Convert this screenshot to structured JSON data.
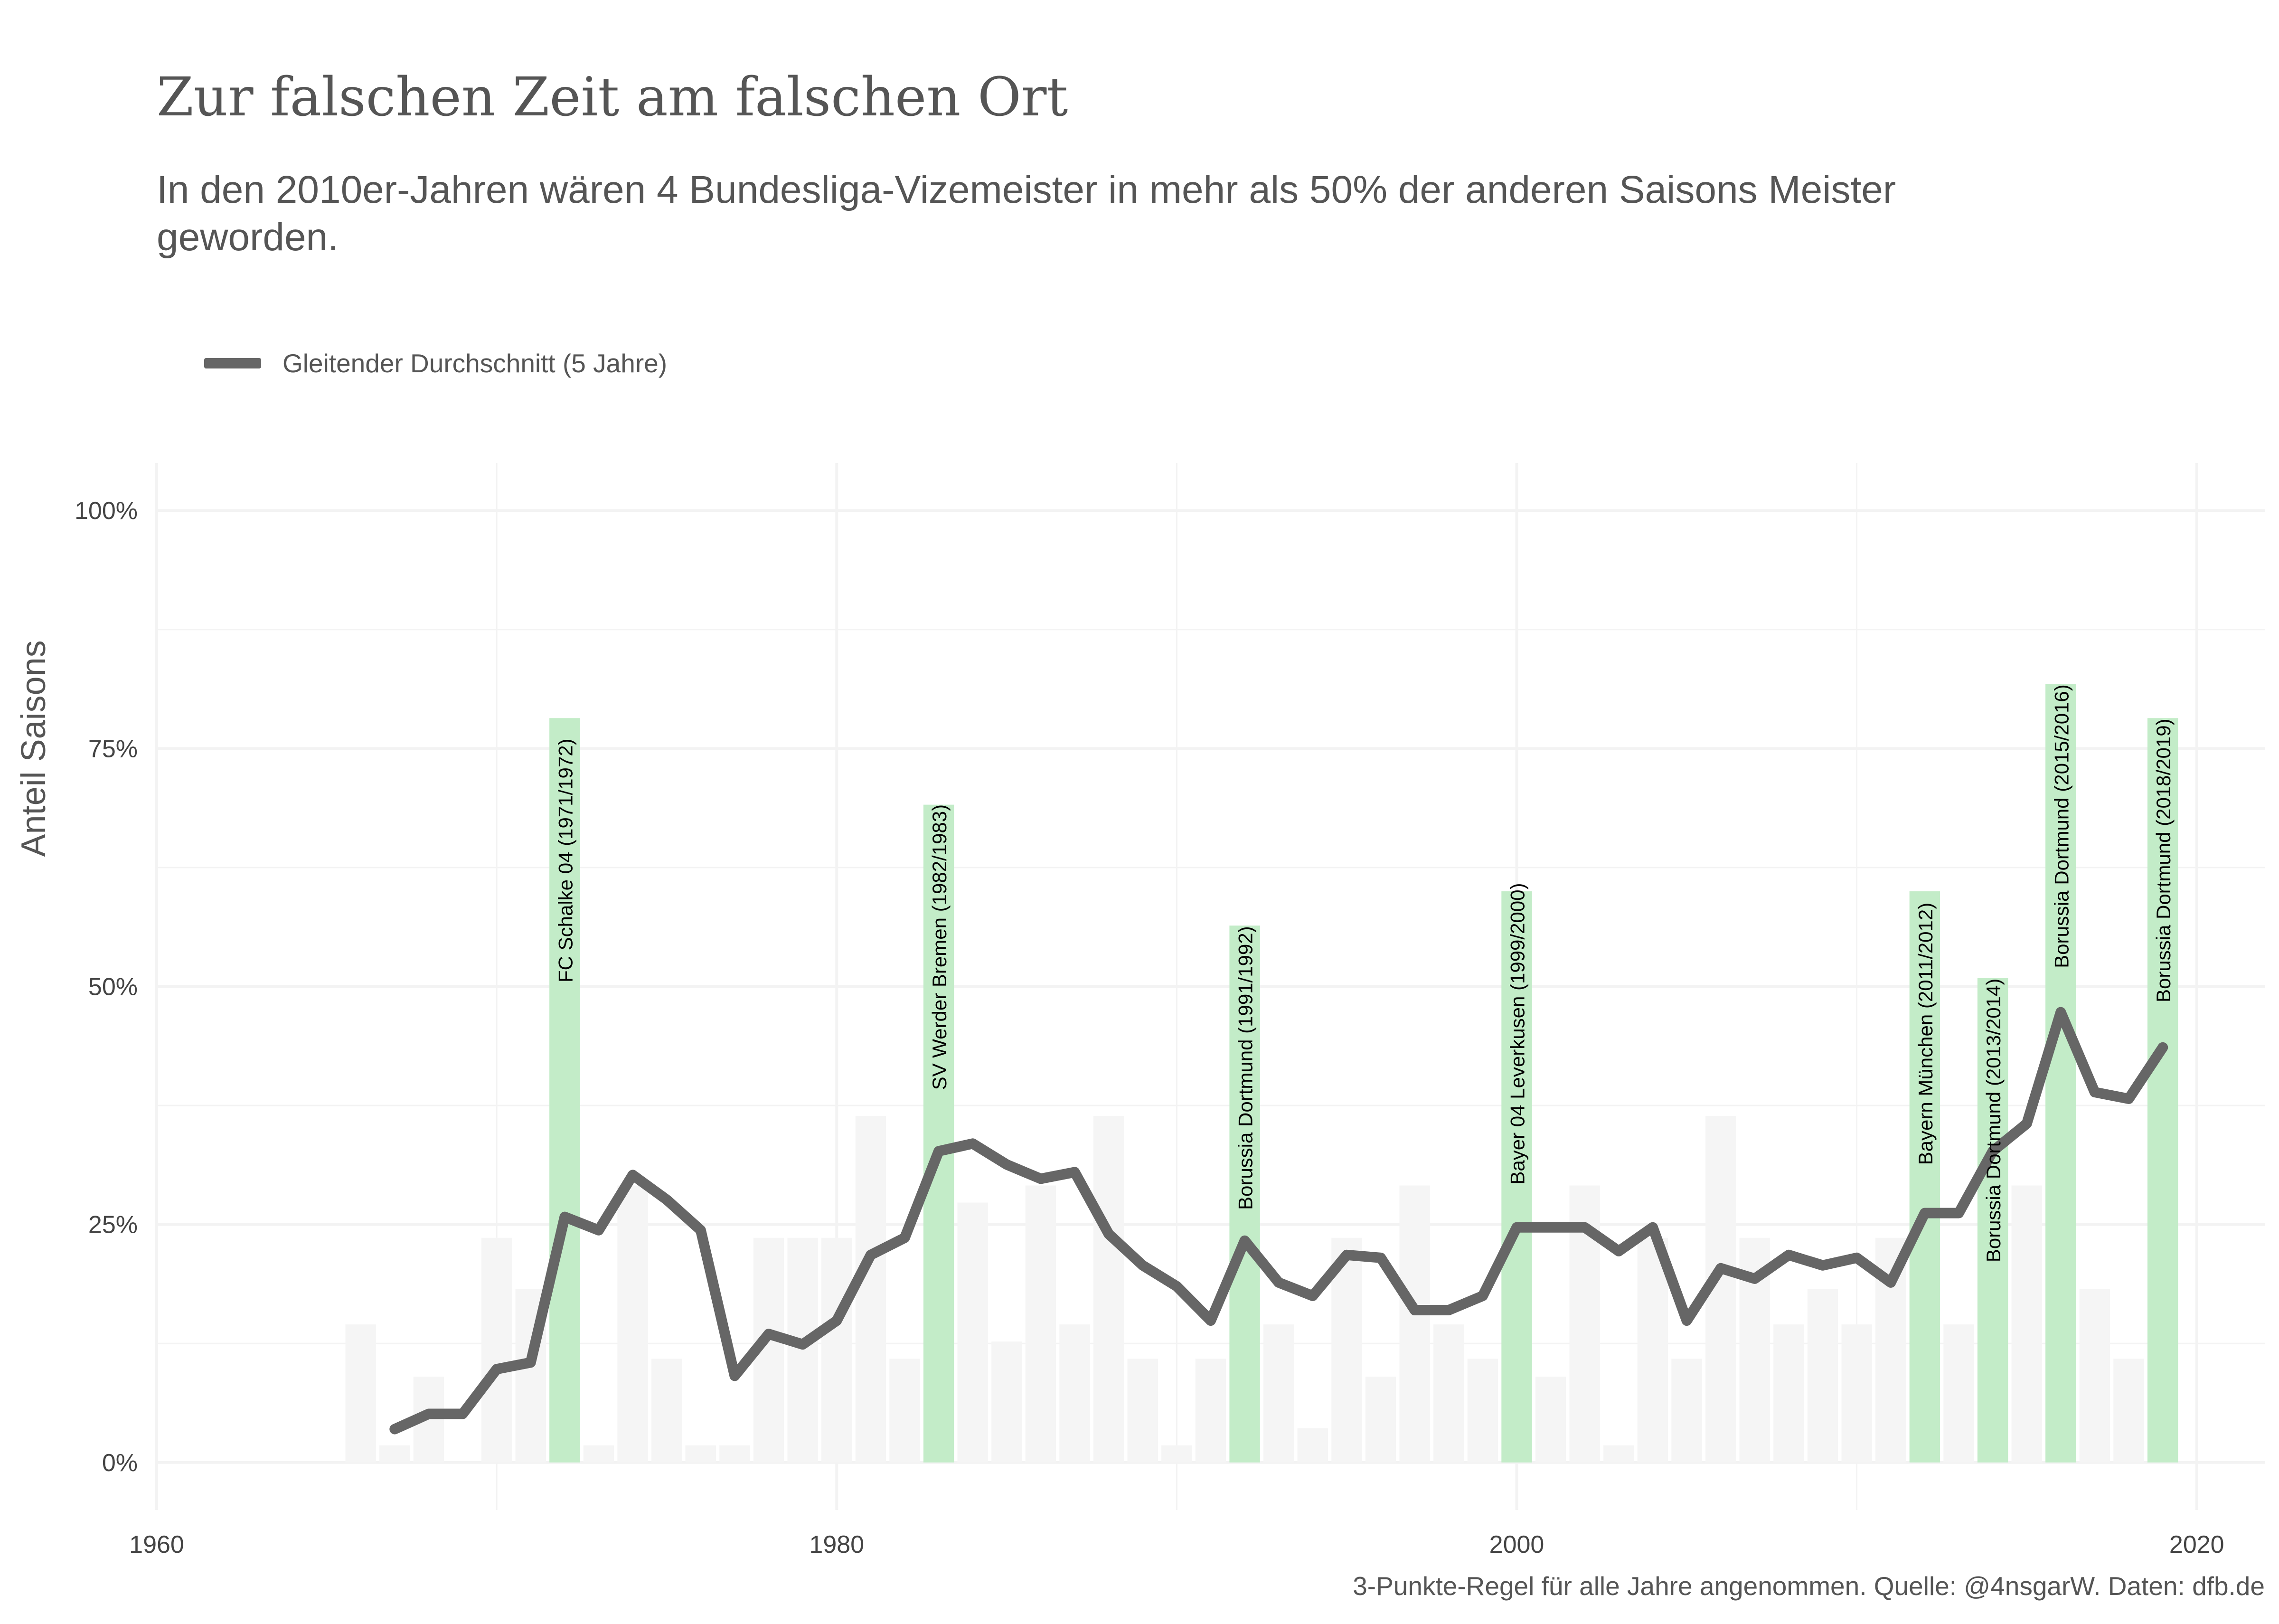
{
  "chart_data": {
    "type": "bar",
    "title": "Zur falschen Zeit am falschen Ort",
    "subtitle": "In den 2010er-Jahren wären 4 Bundesliga-Vizemeister in mehr als 50% der anderen Saisons Meister geworden.",
    "ylabel": "Anteil Saisons",
    "xlabel": "",
    "caption": "3-Punkte-Regel für alle Jahre angenommen. Quelle: @4nsgarW. Daten: dfb.de",
    "xlim": [
      1960,
      2022
    ],
    "ylim": [
      -0.05,
      1.05
    ],
    "x_ticks": [
      1960,
      1980,
      2000,
      2020
    ],
    "y_ticks": [
      0,
      0.25,
      0.5,
      0.75,
      1.0
    ],
    "y_tick_labels": [
      "0%",
      "25%",
      "50%",
      "75%",
      "100%"
    ],
    "grid": true,
    "legend": {
      "position": "top-left",
      "entries": [
        {
          "name": "Gleitender Durchschnitt (5 Jahre)",
          "color": "#666666"
        }
      ]
    },
    "colors": {
      "bar": "#f5f5f5",
      "highlight": "#c3ecc8",
      "line": "#666666",
      "grid": "#f3f3f3"
    },
    "bars": [
      {
        "x": 1966,
        "value": 0.145
      },
      {
        "x": 1967,
        "value": 0.018
      },
      {
        "x": 1968,
        "value": 0.09
      },
      {
        "x": 1969,
        "value": 0.0
      },
      {
        "x": 1970,
        "value": 0.236
      },
      {
        "x": 1971,
        "value": 0.182
      },
      {
        "x": 1972,
        "value": 0.782,
        "highlight": true,
        "label": "FC Schalke 04 (1971/1972)"
      },
      {
        "x": 1973,
        "value": 0.018
      },
      {
        "x": 1974,
        "value": 0.291
      },
      {
        "x": 1975,
        "value": 0.109
      },
      {
        "x": 1976,
        "value": 0.018
      },
      {
        "x": 1977,
        "value": 0.018
      },
      {
        "x": 1978,
        "value": 0.236
      },
      {
        "x": 1979,
        "value": 0.236
      },
      {
        "x": 1980,
        "value": 0.236
      },
      {
        "x": 1981,
        "value": 0.364
      },
      {
        "x": 1982,
        "value": 0.109
      },
      {
        "x": 1983,
        "value": 0.691,
        "highlight": true,
        "label": "SV Werder Bremen (1982/1983)"
      },
      {
        "x": 1984,
        "value": 0.273
      },
      {
        "x": 1985,
        "value": 0.127
      },
      {
        "x": 1986,
        "value": 0.291
      },
      {
        "x": 1987,
        "value": 0.145
      },
      {
        "x": 1988,
        "value": 0.364
      },
      {
        "x": 1989,
        "value": 0.109
      },
      {
        "x": 1990,
        "value": 0.018
      },
      {
        "x": 1991,
        "value": 0.109
      },
      {
        "x": 1992,
        "value": 0.564,
        "highlight": true,
        "label": "Borussia Dortmund (1991/1992)"
      },
      {
        "x": 1993,
        "value": 0.145
      },
      {
        "x": 1994,
        "value": 0.036
      },
      {
        "x": 1995,
        "value": 0.236
      },
      {
        "x": 1996,
        "value": 0.09
      },
      {
        "x": 1997,
        "value": 0.291
      },
      {
        "x": 1998,
        "value": 0.145
      },
      {
        "x": 1999,
        "value": 0.109
      },
      {
        "x": 2000,
        "value": 0.6,
        "highlight": true,
        "label": "Bayer 04 Leverkusen (1999/2000)"
      },
      {
        "x": 2001,
        "value": 0.09
      },
      {
        "x": 2002,
        "value": 0.291
      },
      {
        "x": 2003,
        "value": 0.018
      },
      {
        "x": 2004,
        "value": 0.236
      },
      {
        "x": 2005,
        "value": 0.109
      },
      {
        "x": 2006,
        "value": 0.364
      },
      {
        "x": 2007,
        "value": 0.236
      },
      {
        "x": 2008,
        "value": 0.145
      },
      {
        "x": 2009,
        "value": 0.182
      },
      {
        "x": 2010,
        "value": 0.145
      },
      {
        "x": 2011,
        "value": 0.236
      },
      {
        "x": 2012,
        "value": 0.6,
        "highlight": true,
        "label": "Bayern München (2011/2012)"
      },
      {
        "x": 2013,
        "value": 0.145
      },
      {
        "x": 2014,
        "value": 0.509,
        "highlight": true,
        "label": "Borussia Dortmund (2013/2014)"
      },
      {
        "x": 2015,
        "value": 0.291
      },
      {
        "x": 2016,
        "value": 0.818,
        "highlight": true,
        "label": "Borussia Dortmund (2015/2016)"
      },
      {
        "x": 2017,
        "value": 0.182
      },
      {
        "x": 2018,
        "value": 0.109
      },
      {
        "x": 2019,
        "value": 0.782,
        "highlight": true,
        "label": "Borussia Dortmund (2018/2019)"
      }
    ],
    "series": [
      {
        "name": "Gleitender Durchschnitt (5 Jahre)",
        "x": [
          1967,
          1968,
          1969,
          1970,
          1971,
          1972,
          1973,
          1974,
          1975,
          1976,
          1977,
          1978,
          1979,
          1980,
          1981,
          1982,
          1983,
          1984,
          1985,
          1986,
          1987,
          1988,
          1989,
          1990,
          1991,
          1992,
          1993,
          1994,
          1995,
          1996,
          1997,
          1998,
          1999,
          2000,
          2001,
          2002,
          2003,
          2004,
          2005,
          2006,
          2007,
          2008,
          2009,
          2010,
          2011,
          2012,
          2013,
          2014,
          2015,
          2016,
          2017,
          2018,
          2019
        ],
        "values": [
          0.035,
          0.051,
          0.051,
          0.098,
          0.105,
          0.258,
          0.244,
          0.302,
          0.276,
          0.244,
          0.091,
          0.135,
          0.124,
          0.149,
          0.218,
          0.236,
          0.327,
          0.335,
          0.313,
          0.298,
          0.305,
          0.24,
          0.207,
          0.185,
          0.149,
          0.233,
          0.189,
          0.175,
          0.218,
          0.215,
          0.16,
          0.16,
          0.175,
          0.247,
          0.247,
          0.247,
          0.222,
          0.247,
          0.149,
          0.204,
          0.193,
          0.218,
          0.207,
          0.215,
          0.189,
          0.262,
          0.262,
          0.327,
          0.356,
          0.473,
          0.389,
          0.382,
          0.436
        ]
      }
    ]
  }
}
